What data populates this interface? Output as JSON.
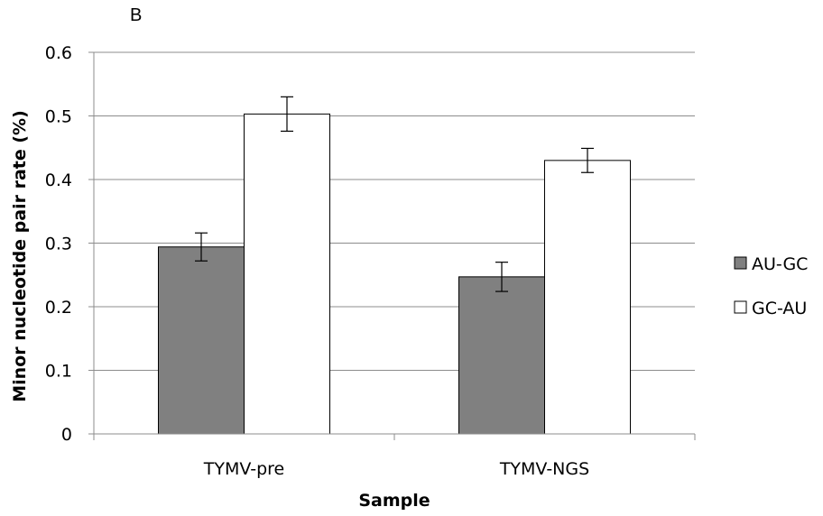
{
  "panel_label": "B",
  "chart_data": {
    "type": "bar",
    "title": "",
    "xlabel": "Sample",
    "ylabel": "Minor nucleotide pair rate (%)",
    "categories": [
      "TYMV-pre",
      "TYMV-NGS"
    ],
    "ylim": [
      0,
      0.6
    ],
    "yticks": [
      "0",
      "0.1",
      "0.2",
      "0.3",
      "0.4",
      "0.5",
      "0.6"
    ],
    "grid": true,
    "legend_position": "right",
    "series": [
      {
        "name": "AU-GC",
        "values": [
          0.294,
          0.247
        ],
        "errors": [
          0.022,
          0.023
        ],
        "color": "#808080"
      },
      {
        "name": "GC-AU",
        "values": [
          0.503,
          0.43
        ],
        "errors": [
          0.027,
          0.019
        ],
        "color": "#ffffff"
      }
    ]
  }
}
